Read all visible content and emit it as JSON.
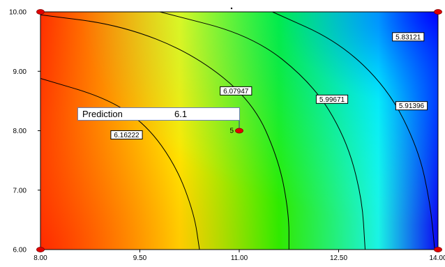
{
  "chart_data": {
    "type": "heatmap",
    "subtype": "contour",
    "xlim": [
      8.0,
      14.0
    ],
    "ylim": [
      6.0,
      10.0
    ],
    "x_ticks": [
      "8.00",
      "9.50",
      "11.00",
      "12.50",
      "14.00"
    ],
    "x_tick_values": [
      8.0,
      9.5,
      11.0,
      12.5,
      14.0
    ],
    "y_ticks": [
      "6.00",
      "7.00",
      "8.00",
      "9.00",
      "10.00"
    ],
    "y_tick_values": [
      6.0,
      7.0,
      8.0,
      9.0,
      10.0
    ],
    "colormap": [
      "#ff2a00",
      "#ffff00",
      "#00ff00",
      "#00ffff",
      "#0000ff"
    ],
    "contours": [
      {
        "label": "6.16222",
        "points": [
          [
            8.0,
            8.88
          ],
          [
            9.0,
            8.55
          ],
          [
            9.6,
            8.1
          ],
          [
            10.05,
            7.4
          ],
          [
            10.32,
            6.6
          ],
          [
            10.4,
            6.0
          ]
        ],
        "label_at": [
          9.3,
          7.93
        ]
      },
      {
        "label": "6.07947",
        "points": [
          [
            8.0,
            9.95
          ],
          [
            9.2,
            9.78
          ],
          [
            10.3,
            9.3
          ],
          [
            11.2,
            8.5
          ],
          [
            11.6,
            7.5
          ],
          [
            11.75,
            6.6
          ],
          [
            11.75,
            6.0
          ]
        ],
        "label_at": [
          10.95,
          8.67
        ]
      },
      {
        "label": "5.99671",
        "points": [
          [
            9.8,
            10.0
          ],
          [
            11.2,
            9.6
          ],
          [
            12.1,
            8.8
          ],
          [
            12.6,
            7.9
          ],
          [
            12.85,
            6.9
          ],
          [
            12.9,
            6.0
          ]
        ],
        "label_at": [
          12.4,
          8.53
        ]
      },
      {
        "label": "5.91396",
        "points": [
          [
            11.5,
            10.0
          ],
          [
            12.5,
            9.5
          ],
          [
            13.25,
            8.7
          ],
          [
            13.7,
            7.7
          ],
          [
            13.88,
            6.8
          ],
          [
            13.95,
            6.0
          ]
        ],
        "label_at": [
          13.6,
          8.42
        ]
      },
      {
        "label": "5.83121",
        "points": [],
        "label_at": [
          13.55,
          9.58
        ]
      }
    ],
    "design_points": [
      {
        "x": 8.0,
        "y": 10.0
      },
      {
        "x": 14.0,
        "y": 10.0
      },
      {
        "x": 8.0,
        "y": 6.0
      },
      {
        "x": 14.0,
        "y": 6.0
      },
      {
        "x": 11.0,
        "y": 8.0,
        "label": "5"
      }
    ],
    "prediction": {
      "label": "Prediction",
      "value": "6.1",
      "at": [
        11.0,
        8.0
      ]
    }
  }
}
